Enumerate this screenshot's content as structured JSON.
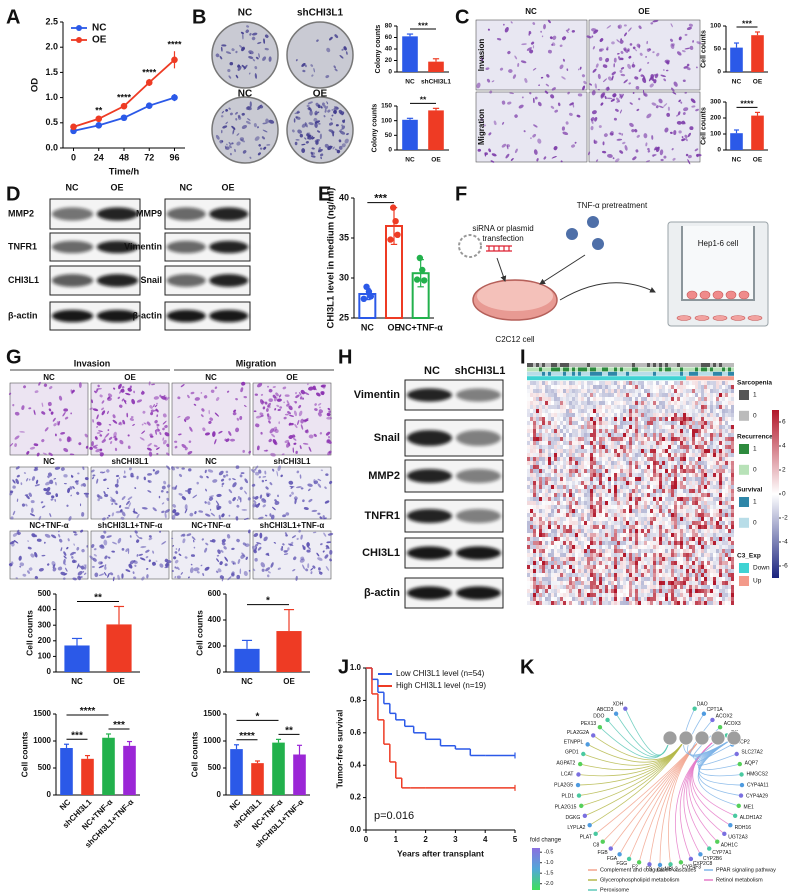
{
  "panel_labels": [
    "A",
    "B",
    "C",
    "D",
    "E",
    "F",
    "G",
    "H",
    "I",
    "J",
    "K"
  ],
  "chart_data": [
    {
      "type": "line",
      "ylabel": "OD",
      "xlabel": "Time/h",
      "x": [
        0,
        24,
        48,
        72,
        96
      ],
      "xlim": [
        -10,
        106
      ],
      "xticks": [
        0,
        24,
        48,
        72,
        96
      ],
      "ylim": [
        0,
        2.5
      ],
      "yticks": [
        {
          "value": 0,
          "label": "0.0"
        },
        {
          "value": 0.5,
          "label": "0.5"
        },
        {
          "value": 1,
          "label": "1.0"
        },
        {
          "value": 1.5,
          "label": "1.5"
        },
        {
          "value": 2,
          "label": "2.0"
        },
        {
          "value": 2.5,
          "label": "2.5"
        }
      ],
      "series": [
        {
          "name": "NC",
          "color": "#2b59e8",
          "values": [
            0.34,
            0.45,
            0.6,
            0.84,
            1.0
          ],
          "errors": [
            0.02,
            0.03,
            0.03,
            0.04,
            0.07
          ]
        },
        {
          "name": "OE",
          "color": "#ee3b24",
          "values": [
            0.42,
            0.58,
            0.83,
            1.3,
            1.75
          ],
          "errors": [
            0.03,
            0.03,
            0.04,
            0.07,
            0.17
          ]
        }
      ],
      "annotations": [
        {
          "label": "**",
          "x": 24
        },
        {
          "label": "****",
          "x": 48
        },
        {
          "label": "****",
          "x": 72
        },
        {
          "label": "****",
          "x": 96
        }
      ],
      "legend": "upper left"
    },
    {
      "type": "bar",
      "ylabel": "Colony counts",
      "categories": [
        "NC",
        "shCHI3L1"
      ],
      "values": [
        62,
        18
      ],
      "errors": [
        4,
        5
      ],
      "colors": [
        "#2b59e8",
        "#ee3b24"
      ],
      "ylim": [
        0,
        80
      ],
      "yticks": [
        0,
        20,
        40,
        60,
        80
      ],
      "annotations": [
        {
          "label": "***",
          "between": [
            "NC",
            "shCHI3L1"
          ]
        }
      ]
    },
    {
      "type": "bar",
      "ylabel": "Colony counts",
      "categories": [
        "NC",
        "OE"
      ],
      "values": [
        103,
        135
      ],
      "errors": [
        5,
        7
      ],
      "colors": [
        "#2b59e8",
        "#ee3b24"
      ],
      "ylim": [
        0,
        150
      ],
      "yticks": [
        0,
        50,
        100,
        150
      ],
      "annotations": [
        {
          "label": "**",
          "between": [
            "NC",
            "OE"
          ]
        }
      ]
    },
    {
      "type": "bar",
      "ylabel": "Cell counts",
      "categories": [
        "NC",
        "OE"
      ],
      "values": [
        53,
        80
      ],
      "errors": [
        10,
        7
      ],
      "colors": [
        "#2b59e8",
        "#ee3b24"
      ],
      "ylim": [
        0,
        100
      ],
      "yticks": [
        0,
        50,
        100
      ],
      "annotations": [
        {
          "label": "***",
          "between": [
            "NC",
            "OE"
          ]
        }
      ]
    },
    {
      "type": "bar",
      "ylabel": "Cell counts",
      "categories": [
        "NC",
        "OE"
      ],
      "values": [
        105,
        215
      ],
      "errors": [
        20,
        20
      ],
      "colors": [
        "#2b59e8",
        "#ee3b24"
      ],
      "ylim": [
        0,
        300
      ],
      "yticks": [
        0,
        100,
        200,
        300
      ],
      "annotations": [
        {
          "label": "****",
          "between": [
            "NC",
            "OE"
          ]
        }
      ]
    },
    {
      "type": "bar",
      "hollow": true,
      "ylabel": "CHI3L1 level in medium (ng/ml)",
      "categories": [
        "NC",
        "OE",
        "NC+TNF-α"
      ],
      "values": [
        28.0,
        36.5,
        30.6
      ],
      "errors": [
        0.7,
        2.3,
        1.7
      ],
      "points": [
        [
          27.4,
          28.3,
          28.9,
          27.7
        ],
        [
          34.8,
          37.1,
          38.8,
          35.4
        ],
        [
          29.8,
          31.0,
          32.5,
          29.7
        ]
      ],
      "colors": [
        "#2b59e8",
        "#ee3b24",
        "#22b14c"
      ],
      "ylim": [
        25,
        40
      ],
      "yticks": [
        25,
        30,
        35,
        40
      ],
      "annotations": [
        {
          "label": "***",
          "between": [
            "NC",
            "OE"
          ]
        }
      ]
    },
    {
      "type": "bar",
      "ylabel": "Cell counts",
      "categories": [
        "NC",
        "OE"
      ],
      "values": [
        170,
        305
      ],
      "errors": [
        45,
        115
      ],
      "colors": [
        "#2b59e8",
        "#ee3b24"
      ],
      "ylim": [
        0,
        500
      ],
      "yticks": [
        0,
        100,
        200,
        300,
        400,
        500
      ],
      "annotations": [
        {
          "label": "**",
          "between": [
            "NC",
            "OE"
          ]
        }
      ]
    },
    {
      "type": "bar",
      "ylabel": "Cell counts",
      "categories": [
        "NC",
        "OE"
      ],
      "values": [
        178,
        315
      ],
      "errors": [
        65,
        165
      ],
      "colors": [
        "#2b59e8",
        "#ee3b24"
      ],
      "ylim": [
        0,
        600
      ],
      "yticks": [
        0,
        200,
        400,
        600
      ],
      "annotations": [
        {
          "label": "*",
          "between": [
            "NC",
            "OE"
          ]
        }
      ]
    },
    {
      "type": "bar",
      "ylabel": "Cell counts",
      "categories": [
        "NC",
        "shCHI3L1",
        "NC+TNF-α",
        "shCHI3L1+TNF-α"
      ],
      "values": [
        870,
        670,
        1060,
        910
      ],
      "errors": [
        70,
        60,
        70,
        80
      ],
      "colors": [
        "#2b59e8",
        "#ee3b24",
        "#22b14c",
        "#9b27d6"
      ],
      "ylim": [
        0,
        1500
      ],
      "yticks": [
        0,
        500,
        1000,
        1500
      ],
      "annotations": [
        {
          "label": "****",
          "between": [
            "NC",
            "NC+TNF-α"
          ]
        },
        {
          "label": "***",
          "between": [
            "NC",
            "shCHI3L1"
          ]
        },
        {
          "label": "***",
          "between": [
            "NC+TNF-α",
            "shCHI3L1+TNF-α"
          ]
        }
      ]
    },
    {
      "type": "bar",
      "ylabel": "Cell counts",
      "categories": [
        "NC",
        "shCHI3L1",
        "NC+TNF-α",
        "shCHI3L1+TNF-α"
      ],
      "values": [
        850,
        590,
        970,
        750
      ],
      "errors": [
        80,
        40,
        60,
        170
      ],
      "colors": [
        "#2b59e8",
        "#ee3b24",
        "#22b14c",
        "#9b27d6"
      ],
      "ylim": [
        0,
        1500
      ],
      "yticks": [
        0,
        500,
        1000,
        1500
      ],
      "annotations": [
        {
          "label": "*",
          "between": [
            "NC",
            "NC+TNF-α"
          ]
        },
        {
          "label": "****",
          "between": [
            "NC",
            "shCHI3L1"
          ]
        },
        {
          "label": "**",
          "between": [
            "NC+TNF-α",
            "shCHI3L1+TNF-α"
          ]
        }
      ]
    },
    {
      "type": "step",
      "ylabel": "Tumor-free survival",
      "xlabel": "Years after transplant",
      "xlim": [
        0,
        5
      ],
      "xticks": [
        0,
        1,
        2,
        3,
        4,
        5
      ],
      "ylim": [
        0,
        1
      ],
      "yticks": [
        {
          "value": 0,
          "label": "0.0"
        },
        {
          "value": 0.2,
          "label": "0.2"
        },
        {
          "value": 0.4,
          "label": "0.4"
        },
        {
          "value": 0.6,
          "label": "0.6"
        },
        {
          "value": 0.8,
          "label": "0.8"
        },
        {
          "value": 1,
          "label": "1.0"
        }
      ],
      "series": [
        {
          "name": "Low CHI3L1 level (n=54)",
          "color": "#2b59e8",
          "x": [
            0,
            0.2,
            0.4,
            0.6,
            0.8,
            1.0,
            1.3,
            1.6,
            2.0,
            2.5,
            3.0,
            3.5,
            4.0,
            5.0
          ],
          "values": [
            1,
            0.93,
            0.85,
            0.78,
            0.72,
            0.68,
            0.64,
            0.6,
            0.56,
            0.52,
            0.5,
            0.46,
            0.46,
            0.46
          ]
        },
        {
          "name": "High CHI3L1 level (n=19)",
          "color": "#ee3b24",
          "x": [
            0,
            0.2,
            0.4,
            0.6,
            0.8,
            1.0,
            1.2,
            1.5,
            2.0,
            5.0
          ],
          "values": [
            1,
            0.84,
            0.68,
            0.53,
            0.42,
            0.32,
            0.26,
            0.26,
            0.26,
            0.26
          ]
        }
      ],
      "annotations": [
        {
          "label": "p=0.016"
        }
      ],
      "legend": "upper right"
    }
  ],
  "colony_images": {
    "labels": [
      "NC",
      "shCHI3L1",
      "NC",
      "OE"
    ]
  },
  "transwell_images": {
    "columns": [
      "NC",
      "OE"
    ],
    "rows": [
      "Invasion",
      "Migration"
    ]
  },
  "blot_d": {
    "columns": [
      "NC",
      "OE"
    ],
    "left": [
      "MMP2",
      "TNFR1",
      "CHI3L1",
      "β-actin"
    ],
    "right_columns": [
      "NC",
      "OE"
    ],
    "right": [
      "MMP9",
      "Vimentin",
      "Snail",
      "β-actin"
    ]
  },
  "schematic": {
    "transfection": [
      "siRNA or plasmid",
      "transfection"
    ],
    "pretreatment": "TNF-α pretreatment",
    "upper_cell": "Hep1-6 cell",
    "lower_cell": "C2C12 cell"
  },
  "image_grid": {
    "headers": [
      "Invasion",
      "Migration"
    ],
    "rows": [
      [
        "NC",
        "OE",
        "NC",
        "OE"
      ],
      [
        "NC",
        "shCHI3L1",
        "NC",
        "shCHI3L1"
      ],
      [
        "NC+TNF-α",
        "shCHI3L1+TNF-α",
        "NC+TNF-α",
        "shCHI3L1+TNF-α"
      ]
    ]
  },
  "blot_h": {
    "columns": [
      "NC",
      "shCHI3L1"
    ],
    "rows": [
      "Vimentin",
      "Snail",
      "MMP2",
      "TNFR1",
      "CHI3L1",
      "β-actin"
    ]
  },
  "heatmap": {
    "tracks": [
      {
        "name": "Sarcopenia",
        "levels": [
          "1",
          "0"
        ]
      },
      {
        "name": "Recurrence",
        "levels": [
          "1",
          "0"
        ]
      },
      {
        "name": "Survival",
        "levels": [
          "1",
          "0"
        ]
      },
      {
        "name": "C3_Exp",
        "levels": [
          "Down",
          "Up"
        ]
      }
    ],
    "colorbar_lim": [
      -7,
      7
    ],
    "colorbar_ticks": [
      6,
      4,
      2,
      0,
      -2,
      -4,
      -6
    ]
  },
  "network": {
    "pathways": [
      {
        "name": "Peroxisome",
        "color": "#5fc9b8",
        "genes": [
          "XDH",
          "ABCD3",
          "DDO",
          "PEX13"
        ]
      },
      {
        "name": "Glycerophospholipid metabolism",
        "color": "#b5b84a",
        "genes": [
          "PLA2G2A",
          "ETNPPL",
          "GPD1",
          "AGPAT2",
          "LCAT",
          "PLA2G5",
          "PLD1",
          "PLA2G15",
          "DGKG",
          "LYPLA2"
        ]
      },
      {
        "name": "Complement and coagulation cascades",
        "color": "#f2a48e",
        "genes": [
          "PLAT",
          "C8",
          "FGB",
          "FGA",
          "FGG",
          "F2",
          "F9",
          "C6",
          "MBL2"
        ]
      },
      {
        "name": "Retinol metabolism",
        "color": "#e57ac8",
        "genes": [
          "CYP4F3",
          "CYP2C8",
          "CYP2B6",
          "CYP7A1",
          "ADH1C",
          "UGT2A3",
          "RDH16",
          "ALDH1A2"
        ]
      },
      {
        "name": "PPAR signaling pathway",
        "color": "#7fb4e8",
        "genes": [
          "ME1",
          "CYP4A29",
          "CYP4A11",
          "HMGCS2",
          "AQP7",
          "SLC27A2",
          "SCP2",
          "GK",
          "ACOX3",
          "ACOX2",
          "CPT1A",
          "DAO"
        ]
      }
    ],
    "fold_change": {
      "title": "fold change",
      "lim": [
        -2.3,
        -0.3
      ],
      "ticks": [
        -0.5,
        {
          "value": -1,
          "label": "-1.0"
        },
        -1.5,
        {
          "value": -2,
          "label": "-2.0"
        }
      ]
    }
  }
}
